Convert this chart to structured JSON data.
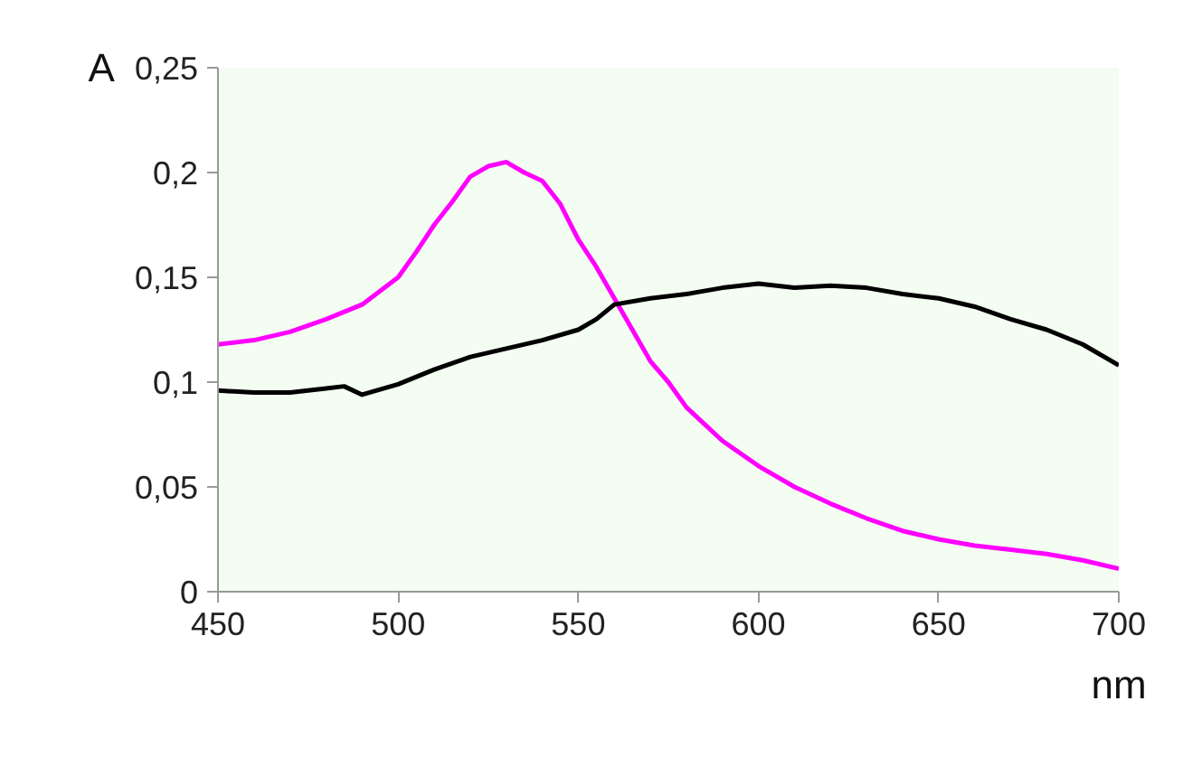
{
  "chart_data": {
    "type": "line",
    "xlabel": "nm",
    "ylabel": "A",
    "xlim": [
      450,
      700
    ],
    "ylim": [
      0,
      0.25
    ],
    "xticks": [
      450,
      500,
      550,
      600,
      650,
      700
    ],
    "yticks": [
      {
        "value": 0,
        "label": "0"
      },
      {
        "value": 0.05,
        "label": "0,05"
      },
      {
        "value": 0.1,
        "label": "0,1"
      },
      {
        "value": 0.15,
        "label": "0,15"
      },
      {
        "value": 0.2,
        "label": "0,2"
      },
      {
        "value": 0.25,
        "label": "0,25"
      }
    ],
    "grid": false,
    "marker": "none",
    "line_style": "solid",
    "series": [
      {
        "color": "#ff00ff",
        "x": [
          450,
          460,
          470,
          480,
          490,
          500,
          505,
          510,
          515,
          520,
          525,
          530,
          535,
          540,
          545,
          550,
          555,
          560,
          565,
          570,
          575,
          580,
          590,
          600,
          610,
          620,
          630,
          640,
          650,
          660,
          670,
          680,
          690,
          700
        ],
        "values": [
          0.118,
          0.12,
          0.124,
          0.13,
          0.137,
          0.15,
          0.162,
          0.175,
          0.186,
          0.198,
          0.203,
          0.205,
          0.2,
          0.196,
          0.185,
          0.168,
          0.155,
          0.14,
          0.125,
          0.11,
          0.1,
          0.088,
          0.072,
          0.06,
          0.05,
          0.042,
          0.035,
          0.029,
          0.025,
          0.022,
          0.02,
          0.018,
          0.015,
          0.011
        ]
      },
      {
        "color": "#000000",
        "x": [
          450,
          460,
          470,
          480,
          485,
          490,
          500,
          510,
          520,
          530,
          540,
          550,
          555,
          560,
          570,
          580,
          590,
          600,
          610,
          620,
          630,
          640,
          650,
          660,
          670,
          680,
          690,
          700
        ],
        "values": [
          0.096,
          0.095,
          0.095,
          0.097,
          0.098,
          0.094,
          0.099,
          0.106,
          0.112,
          0.116,
          0.12,
          0.125,
          0.13,
          0.137,
          0.14,
          0.142,
          0.145,
          0.147,
          0.145,
          0.146,
          0.145,
          0.142,
          0.14,
          0.136,
          0.13,
          0.125,
          0.118,
          0.108
        ]
      }
    ]
  }
}
